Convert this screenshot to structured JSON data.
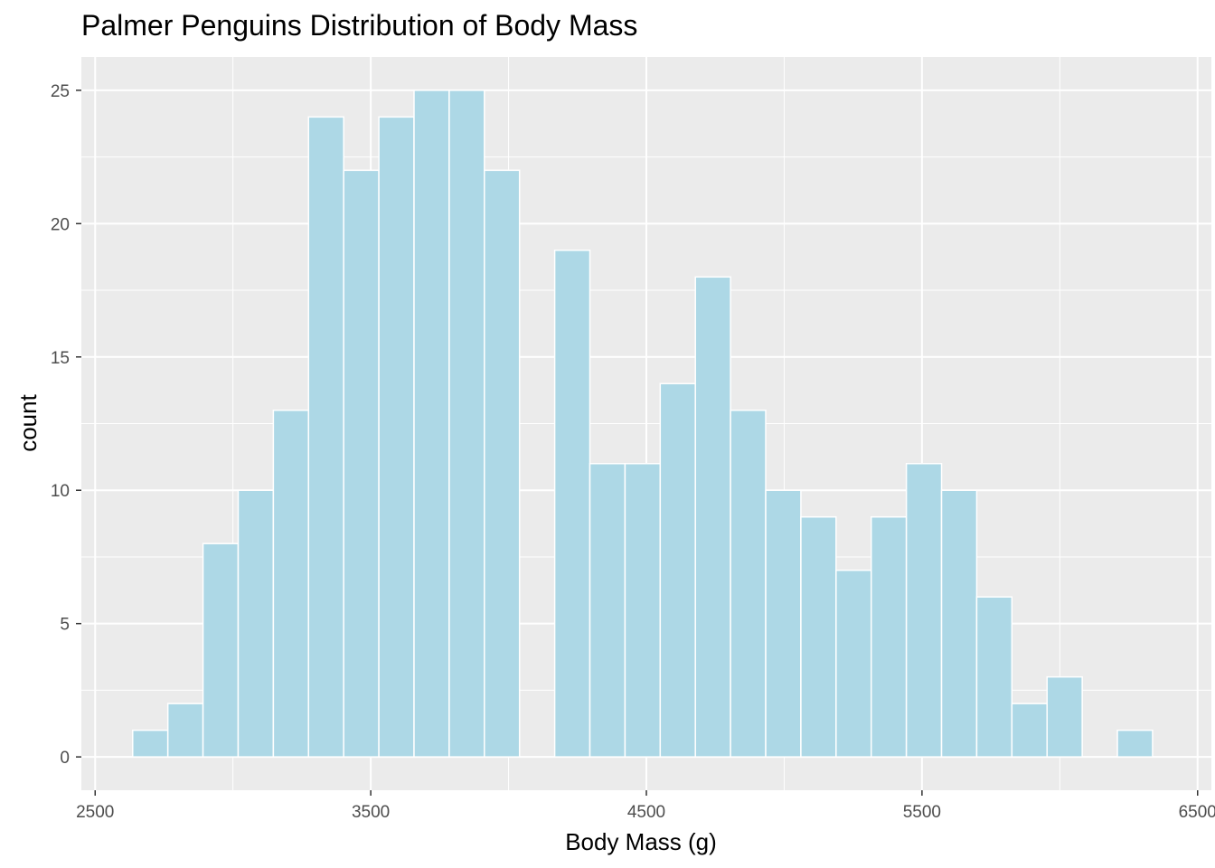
{
  "chart_data": {
    "type": "bar",
    "title": "Palmer Penguins Distribution of Body Mass",
    "xlabel": "Body Mass (g)",
    "ylabel": "count",
    "xlim": [
      2450,
      6550
    ],
    "ylim": [
      -1.25,
      26.25
    ],
    "x_ticks": [
      2500,
      3500,
      4500,
      5500,
      6500
    ],
    "y_ticks": [
      0,
      5,
      10,
      15,
      20,
      25
    ],
    "bin_width": 127.6,
    "bin_start": 2636.2,
    "values": [
      1,
      2,
      8,
      10,
      13,
      24,
      22,
      24,
      25,
      25,
      22,
      0,
      19,
      11,
      11,
      14,
      18,
      13,
      10,
      9,
      7,
      9,
      11,
      10,
      6,
      2,
      3,
      0,
      1
    ],
    "fill_color": "#add8e6",
    "edge_color": "#ffffff",
    "panel_background": "#ebebeb",
    "grid": true
  }
}
